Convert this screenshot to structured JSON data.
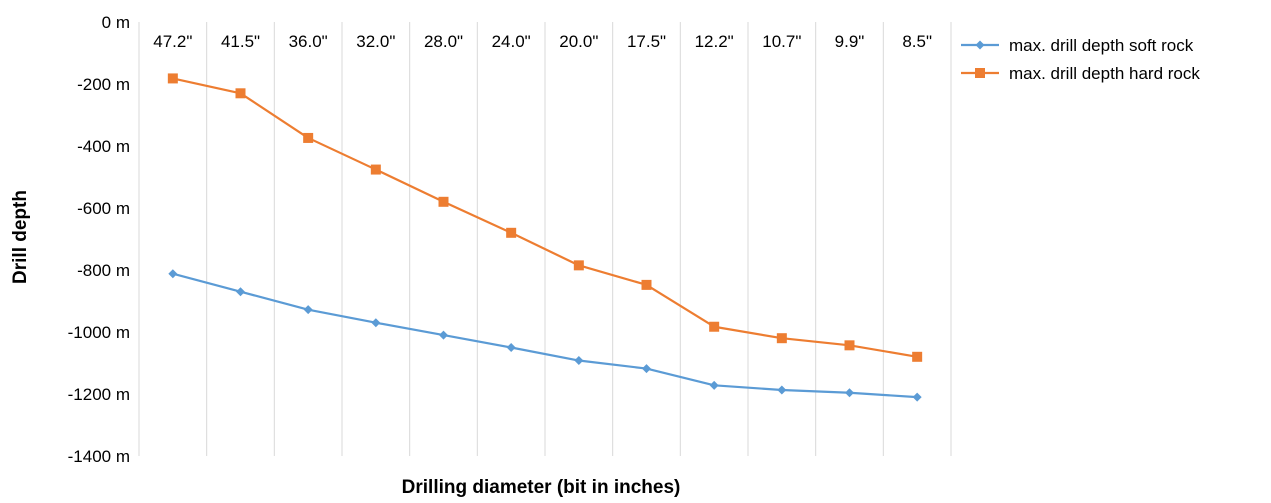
{
  "chart_data": {
    "type": "line",
    "title": "",
    "xlabel": "Drilling diameter (bit in inches)",
    "ylabel": "Drill depth",
    "categories": [
      "47.2\"",
      "41.5\"",
      "36.0\"",
      "32.0\"",
      "28.0\"",
      "24.0\"",
      "20.0\"",
      "17.5\"",
      "12.2\"",
      "10.7\"",
      "9.9\"",
      "8.5\""
    ],
    "ylim": [
      -1400,
      0
    ],
    "yticks": [
      0,
      -200,
      -400,
      -600,
      -800,
      -1000,
      -1200,
      -1400
    ],
    "ytick_labels": [
      "0 m",
      "-200 m",
      "-400 m",
      "-600 m",
      "-800 m",
      "-1000 m",
      "-1200 m",
      "-1400 m"
    ],
    "x_axis_position": "top",
    "grid": "vertical",
    "legend_position": "right",
    "series": [
      {
        "name": "max. drill depth soft rock",
        "color": "#5B9BD5",
        "marker": "diamond",
        "values": [
          -812,
          -870,
          -928,
          -970,
          -1010,
          -1050,
          -1092,
          -1118,
          -1172,
          -1187,
          -1196,
          -1210
        ]
      },
      {
        "name": "max. drill depth hard rock",
        "color": "#ED7D31",
        "marker": "square",
        "values": [
          -182,
          -230,
          -374,
          -476,
          -580,
          -680,
          -785,
          -848,
          -983,
          -1020,
          -1043,
          -1080
        ]
      }
    ]
  }
}
